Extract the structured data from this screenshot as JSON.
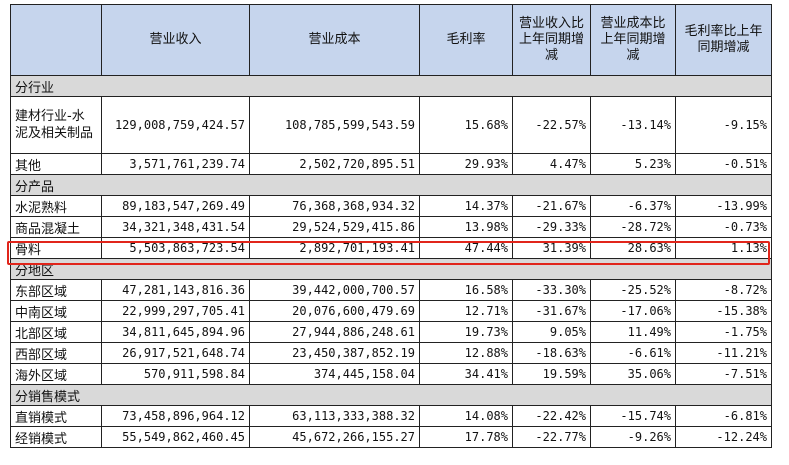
{
  "headers": [
    "",
    "营业收入",
    "营业成本",
    "毛利率",
    "营业收入比上年同期增减",
    "营业成本比上年同期增减",
    "毛利率比上年同期增减"
  ],
  "sections": [
    {
      "title": "分行业",
      "rows": [
        {
          "label": "建材行业-水泥及相关制品",
          "cells": [
            "129,008,759,424.57",
            "108,785,599,543.59",
            "15.68%",
            "-22.57%",
            "-13.14%",
            "-9.15%"
          ]
        },
        {
          "label": "其他",
          "cells": [
            "3,571,761,239.74",
            "2,502,720,895.51",
            "29.93%",
            "4.47%",
            "5.23%",
            "-0.51%"
          ]
        }
      ]
    },
    {
      "title": "分产品",
      "rows": [
        {
          "label": "水泥熟料",
          "cells": [
            "89,183,547,269.49",
            "76,368,368,934.32",
            "14.37%",
            "-21.67%",
            "-6.37%",
            "-13.99%"
          ]
        },
        {
          "label": "商品混凝土",
          "cells": [
            "34,321,348,431.54",
            "29,524,529,415.86",
            "13.98%",
            "-29.33%",
            "-28.72%",
            "-0.73%"
          ]
        },
        {
          "label": "骨料",
          "cells": [
            "5,503,863,723.54",
            "2,892,701,193.41",
            "47.44%",
            "31.39%",
            "28.63%",
            "1.13%"
          ]
        }
      ]
    },
    {
      "title": "分地区",
      "rows": [
        {
          "label": "东部区域",
          "cells": [
            "47,281,143,816.36",
            "39,442,000,700.57",
            "16.58%",
            "-33.30%",
            "-25.52%",
            "-8.72%"
          ]
        },
        {
          "label": "中南区域",
          "cells": [
            "22,999,297,705.41",
            "20,076,600,479.69",
            "12.71%",
            "-31.67%",
            "-17.06%",
            "-15.38%"
          ]
        },
        {
          "label": "北部区域",
          "cells": [
            "34,811,645,894.96",
            "27,944,886,248.61",
            "19.73%",
            "9.05%",
            "11.49%",
            "-1.75%"
          ]
        },
        {
          "label": "西部区域",
          "cells": [
            "26,917,521,648.74",
            "23,450,387,852.19",
            "12.88%",
            "-18.63%",
            "-6.61%",
            "-11.21%"
          ]
        },
        {
          "label": "海外区域",
          "cells": [
            "570,911,598.84",
            "374,445,158.04",
            "34.41%",
            "19.59%",
            "35.06%",
            "-7.51%"
          ]
        }
      ]
    },
    {
      "title": "分销售模式",
      "rows": [
        {
          "label": "直销模式",
          "cells": [
            "73,458,896,964.12",
            "63,113,333,388.32",
            "14.08%",
            "-22.42%",
            "-15.74%",
            "-6.81%"
          ]
        },
        {
          "label": "经销模式",
          "cells": [
            "55,549,862,460.45",
            "45,672,266,155.27",
            "17.78%",
            "-22.77%",
            "-9.26%",
            "-12.24%"
          ]
        }
      ]
    }
  ],
  "highlighted_row": "骨料",
  "colors": {
    "header_bg": "#c6d5ed",
    "section_bg": "#d9d9d9",
    "highlight_border": "#e1251b"
  }
}
